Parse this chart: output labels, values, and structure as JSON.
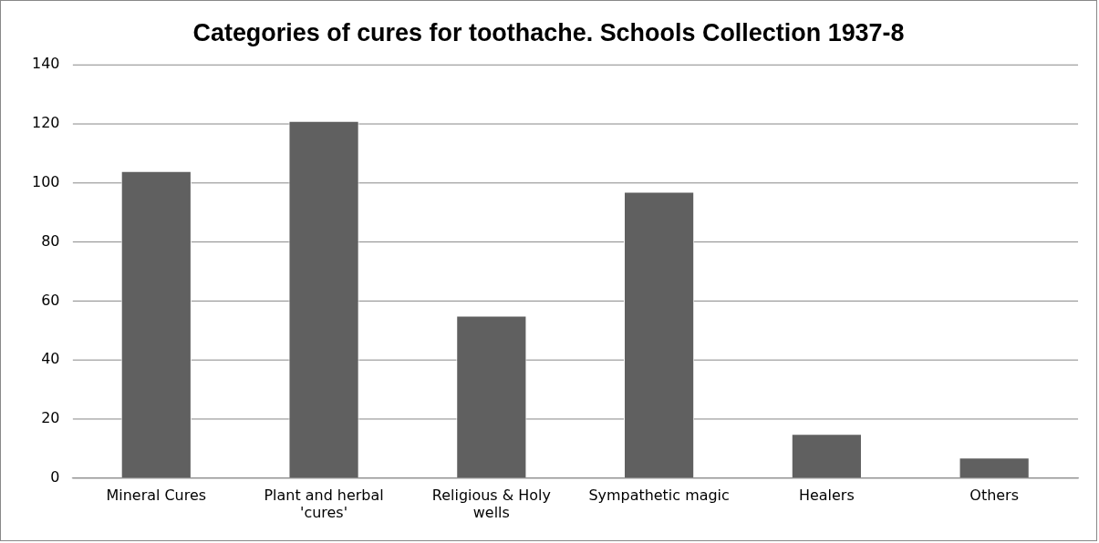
{
  "chart_data": {
    "type": "bar",
    "title": "Categories of cures for toothache. Schools Collection 1937-8",
    "categories": [
      "Mineral Cures",
      "Plant and herbal 'cures'",
      "Religious & Holy wells",
      "Sympathetic magic",
      "Healers",
      "Others"
    ],
    "values": [
      104,
      121,
      55,
      97,
      15,
      7
    ],
    "color": "#606060",
    "ylim": [
      0,
      140
    ],
    "yticks": [
      0,
      20,
      40,
      60,
      80,
      100,
      120,
      140
    ],
    "grid": "y"
  }
}
